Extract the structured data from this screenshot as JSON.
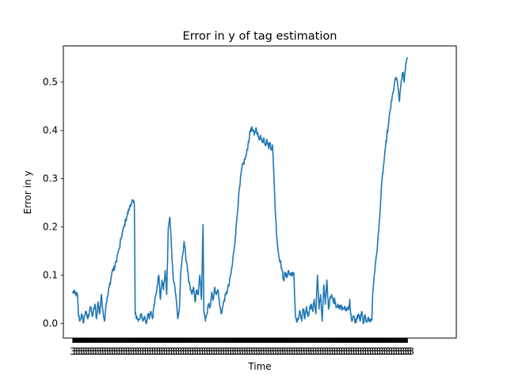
{
  "chart_data": {
    "type": "line",
    "title": "Error in y of tag estimation",
    "xlabel": "Time",
    "ylabel": "Error in y",
    "ylim": [
      -0.03,
      0.575
    ],
    "xlim": [
      -12,
      486
    ],
    "yticks": [
      "0.0",
      "0.1",
      "0.2",
      "0.3",
      "0.4",
      "0.5"
    ],
    "xtick_label_glyph": "3",
    "grid": false,
    "legend": "none",
    "line_color": "#1f77b4",
    "series": [
      {
        "anchors": [
          [
            0,
            0.065
          ],
          [
            3,
            0.063
          ],
          [
            6,
            0.058
          ],
          [
            7,
            0.02
          ],
          [
            9,
            0.005
          ],
          [
            11,
            0.02
          ],
          [
            13,
            0.002
          ],
          [
            16,
            0.025
          ],
          [
            19,
            0.01
          ],
          [
            22,
            0.035
          ],
          [
            25,
            0.015
          ],
          [
            28,
            0.04
          ],
          [
            30,
            0.01
          ],
          [
            32,
            0.045
          ],
          [
            34,
            0.02
          ],
          [
            36,
            0.06
          ],
          [
            38,
            0.03
          ],
          [
            40,
            0.005
          ],
          [
            42,
            0.04
          ],
          [
            44,
            0.055
          ],
          [
            46,
            0.075
          ],
          [
            48,
            0.09
          ],
          [
            50,
            0.11
          ],
          [
            53,
            0.115
          ],
          [
            55,
            0.13
          ],
          [
            57,
            0.145
          ],
          [
            59,
            0.155
          ],
          [
            61,
            0.175
          ],
          [
            63,
            0.19
          ],
          [
            65,
            0.2
          ],
          [
            67,
            0.215
          ],
          [
            69,
            0.225
          ],
          [
            71,
            0.235
          ],
          [
            73,
            0.245
          ],
          [
            75,
            0.255
          ],
          [
            77,
            0.25
          ],
          [
            78,
            0.245
          ],
          [
            79,
            0.02
          ],
          [
            81,
            0.015
          ],
          [
            83,
            0.005
          ],
          [
            85,
            0.01
          ],
          [
            87,
            0.02
          ],
          [
            89,
            0.005
          ],
          [
            91,
            0.015
          ],
          [
            93,
            0.0
          ],
          [
            95,
            0.02
          ],
          [
            97,
            0.01
          ],
          [
            99,
            0.025
          ],
          [
            101,
            0.01
          ],
          [
            103,
            0.04
          ],
          [
            105,
            0.06
          ],
          [
            107,
            0.08
          ],
          [
            109,
            0.1
          ],
          [
            111,
            0.05
          ],
          [
            113,
            0.09
          ],
          [
            115,
            0.07
          ],
          [
            117,
            0.11
          ],
          [
            119,
            0.06
          ],
          [
            121,
            0.2
          ],
          [
            123,
            0.22
          ],
          [
            125,
            0.16
          ],
          [
            127,
            0.1
          ],
          [
            129,
            0.08
          ],
          [
            131,
            0.05
          ],
          [
            133,
            0.01
          ],
          [
            135,
            0.03
          ],
          [
            137,
            0.11
          ],
          [
            139,
            0.14
          ],
          [
            141,
            0.17
          ],
          [
            143,
            0.14
          ],
          [
            145,
            0.12
          ],
          [
            147,
            0.085
          ],
          [
            149,
            0.07
          ],
          [
            151,
            0.06
          ],
          [
            153,
            0.075
          ],
          [
            155,
            0.045
          ],
          [
            157,
            0.07
          ],
          [
            159,
            0.06
          ],
          [
            161,
            0.1
          ],
          [
            163,
            0.05
          ],
          [
            165,
            0.205
          ],
          [
            166,
            0.03
          ],
          [
            168,
            0.005
          ],
          [
            170,
            0.02
          ],
          [
            172,
            0.04
          ],
          [
            174,
            0.035
          ],
          [
            176,
            0.065
          ],
          [
            178,
            0.05
          ],
          [
            180,
            0.075
          ],
          [
            182,
            0.06
          ],
          [
            184,
            0.07
          ],
          [
            186,
            0.04
          ],
          [
            188,
            0.02
          ],
          [
            190,
            0.035
          ],
          [
            192,
            0.05
          ],
          [
            194,
            0.06
          ],
          [
            196,
            0.07
          ],
          [
            198,
            0.08
          ],
          [
            200,
            0.1
          ],
          [
            202,
            0.12
          ],
          [
            204,
            0.15
          ],
          [
            206,
            0.18
          ],
          [
            208,
            0.22
          ],
          [
            210,
            0.26
          ],
          [
            212,
            0.29
          ],
          [
            214,
            0.32
          ],
          [
            216,
            0.33
          ],
          [
            218,
            0.34
          ],
          [
            220,
            0.35
          ],
          [
            222,
            0.37
          ],
          [
            224,
            0.39
          ],
          [
            226,
            0.405
          ],
          [
            228,
            0.4
          ],
          [
            230,
            0.39
          ],
          [
            232,
            0.405
          ],
          [
            234,
            0.395
          ],
          [
            236,
            0.38
          ],
          [
            238,
            0.39
          ],
          [
            240,
            0.375
          ],
          [
            242,
            0.385
          ],
          [
            244,
            0.37
          ],
          [
            246,
            0.38
          ],
          [
            248,
            0.365
          ],
          [
            250,
            0.375
          ],
          [
            252,
            0.36
          ],
          [
            253,
            0.37
          ],
          [
            255,
            0.3
          ],
          [
            257,
            0.22
          ],
          [
            259,
            0.17
          ],
          [
            261,
            0.14
          ],
          [
            263,
            0.13
          ],
          [
            265,
            0.11
          ],
          [
            267,
            0.09
          ],
          [
            269,
            0.105
          ],
          [
            271,
            0.095
          ],
          [
            273,
            0.11
          ],
          [
            275,
            0.1
          ],
          [
            277,
            0.105
          ],
          [
            279,
            0.1
          ],
          [
            280,
            0.105
          ],
          [
            282,
            0.02
          ],
          [
            284,
            0.003
          ],
          [
            286,
            0.01
          ],
          [
            288,
            0.025
          ],
          [
            290,
            0.005
          ],
          [
            292,
            0.03
          ],
          [
            294,
            0.01
          ],
          [
            296,
            0.035
          ],
          [
            298,
            0.015
          ],
          [
            300,
            0.03
          ],
          [
            302,
            0.04
          ],
          [
            304,
            0.025
          ],
          [
            306,
            0.05
          ],
          [
            308,
            0.02
          ],
          [
            310,
            0.1
          ],
          [
            312,
            0.03
          ],
          [
            314,
            0.06
          ],
          [
            316,
            0.005
          ],
          [
            318,
            0.08
          ],
          [
            320,
            0.04
          ],
          [
            322,
            0.09
          ],
          [
            324,
            0.03
          ],
          [
            326,
            0.055
          ],
          [
            328,
            0.06
          ],
          [
            330,
            0.045
          ],
          [
            332,
            0.05
          ],
          [
            334,
            0.035
          ],
          [
            336,
            0.04
          ],
          [
            338,
            0.03
          ],
          [
            340,
            0.035
          ],
          [
            342,
            0.03
          ],
          [
            344,
            0.033
          ],
          [
            346,
            0.028
          ],
          [
            348,
            0.032
          ],
          [
            350,
            0.035
          ],
          [
            351,
            0.05
          ],
          [
            352,
            0.02
          ],
          [
            354,
            0.005
          ],
          [
            356,
            0.015
          ],
          [
            358,
            0.003
          ],
          [
            360,
            0.01
          ],
          [
            362,
            0.02
          ],
          [
            364,
            0.005
          ],
          [
            366,
            0.025
          ],
          [
            368,
            0.0
          ],
          [
            370,
            0.015
          ],
          [
            372,
            0.005
          ],
          [
            374,
            0.012
          ],
          [
            376,
            0.004
          ],
          [
            378,
            0.01
          ],
          [
            379,
            0.007
          ],
          [
            380,
            0.06
          ],
          [
            382,
            0.1
          ],
          [
            384,
            0.13
          ],
          [
            386,
            0.16
          ],
          [
            388,
            0.2
          ],
          [
            390,
            0.25
          ],
          [
            392,
            0.3
          ],
          [
            394,
            0.33
          ],
          [
            396,
            0.36
          ],
          [
            398,
            0.39
          ],
          [
            400,
            0.41
          ],
          [
            402,
            0.44
          ],
          [
            404,
            0.46
          ],
          [
            406,
            0.48
          ],
          [
            408,
            0.5
          ],
          [
            410,
            0.51
          ],
          [
            412,
            0.49
          ],
          [
            414,
            0.46
          ],
          [
            416,
            0.5
          ],
          [
            418,
            0.52
          ],
          [
            420,
            0.5
          ],
          [
            422,
            0.54
          ],
          [
            424,
            0.55
          ]
        ]
      }
    ]
  }
}
